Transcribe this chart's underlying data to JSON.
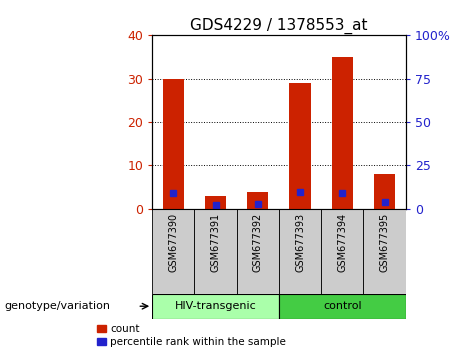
{
  "title": "GDS4229 / 1378553_at",
  "samples": [
    "GSM677390",
    "GSM677391",
    "GSM677392",
    "GSM677393",
    "GSM677394",
    "GSM677395"
  ],
  "count_values": [
    30,
    3,
    4,
    29,
    35,
    8
  ],
  "percentile_values": [
    9,
    2,
    3,
    10,
    9,
    4
  ],
  "left_ylim": [
    0,
    40
  ],
  "right_ylim": [
    0,
    100
  ],
  "left_yticks": [
    0,
    10,
    20,
    30,
    40
  ],
  "right_yticks": [
    0,
    25,
    50,
    75,
    100
  ],
  "left_yticklabels": [
    "0",
    "10",
    "20",
    "30",
    "40"
  ],
  "right_yticklabels": [
    "0",
    "25",
    "50",
    "75",
    "100%"
  ],
  "bar_color_red": "#CC2200",
  "bar_color_blue": "#2222CC",
  "bar_width": 0.5,
  "group1_label": "HIV-transgenic",
  "group2_label": "control",
  "group1_indices": [
    0,
    1,
    2
  ],
  "group2_indices": [
    3,
    4,
    5
  ],
  "group1_color": "#AAFFAA",
  "group2_color": "#44CC44",
  "xlabel_group": "genotype/variation",
  "legend_count": "count",
  "legend_percentile": "percentile rank within the sample",
  "title_fontsize": 11,
  "axis_label_color_left": "#CC2200",
  "axis_label_color_right": "#2222CC",
  "sample_area_color": "#CCCCCC",
  "grid_color": "black",
  "grid_linestyle": ":"
}
